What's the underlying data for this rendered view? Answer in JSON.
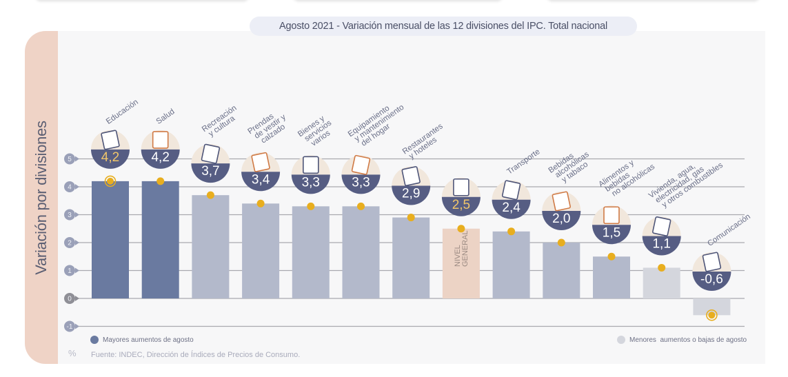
{
  "title": "Agosto 2021 - Variación mensual de las 12 divisiones del IPC. Total nacional",
  "y_axis_title": "Variación por divisiones",
  "unit_symbol": "%",
  "source": "Fuente: INDEC, Dirección de Índices de Precios de Consumo.",
  "legend": [
    {
      "label": "Mayores aumentos de agosto",
      "color": "#6a7aa0"
    },
    {
      "label": "Menores  aumentos o bajas de agosto",
      "color": "#d4d6dd"
    }
  ],
  "colors": {
    "high": "#6a7aa0",
    "mid": "#b3b9cb",
    "low": "#d4d6dd",
    "general": "#ecd3c5",
    "badge": "#565d83",
    "badge_top": "#f1e7dc",
    "dot": "#e8ae1f",
    "grid": "#a9a9ae",
    "label": "#6a6f88",
    "highlight_value": "#f1c66a"
  },
  "chart_data": {
    "type": "bar",
    "title": "Agosto 2021 - Variación mensual de las 12 divisiones del IPC. Total nacional",
    "xlabel": "",
    "ylabel": "Variación por divisiones",
    "ylim": [
      -1,
      5
    ],
    "yticks": [
      5,
      4,
      3,
      2,
      1,
      0,
      -1
    ],
    "grid": true,
    "categories": [
      "Educación",
      "Salud",
      "Recreación y cultura",
      "Prendas de vestir y calzado",
      "Bienes y servicios varios",
      "Equipamiento y mantenimiento del hogar",
      "Restaurantes y hoteles",
      "NIVEL GENERAL",
      "Transporte",
      "Bebidas alcohólicas y tabaco",
      "Alimentos y bebidas no alcohólicas",
      "Vivienda, agua, electricidad, gas y otros combustibles",
      "Comunicación"
    ],
    "values": [
      4.2,
      4.2,
      3.7,
      3.4,
      3.3,
      3.3,
      2.9,
      2.5,
      2.4,
      2.0,
      1.5,
      1.1,
      -0.6
    ],
    "value_labels": [
      "4,2",
      "4,2",
      "3,7",
      "3,4",
      "3,3",
      "3,3",
      "2,9",
      "2,5",
      "2,4",
      "2,0",
      "1,5",
      "1,1",
      "-0,6"
    ],
    "category_labels": [
      [
        "Educación"
      ],
      [
        "Salud"
      ],
      [
        "Recreación",
        "y cultura"
      ],
      [
        "Prendas",
        "de vestir y",
        "calzado"
      ],
      [
        "Bienes y",
        "servicios",
        "varios"
      ],
      [
        "Equipamiento",
        "y mantenimiento",
        "del hogar"
      ],
      [
        "Restaurantes",
        "y hoteles"
      ],
      [],
      [
        "Transporte"
      ],
      [
        "Bebidas",
        "alcohólicas",
        "y tabaco"
      ],
      [
        "Alimentos y",
        "bebidas",
        "no alcohólicas"
      ],
      [
        "Vivienda, agua,",
        "electricidad, gas",
        "y otros combustibles"
      ],
      [
        "Comunicación"
      ]
    ],
    "bar_groups": [
      "high",
      "high",
      "mid",
      "mid",
      "mid",
      "mid",
      "mid",
      "general",
      "mid",
      "mid",
      "mid",
      "low",
      "low"
    ],
    "general_bar_text": [
      "NIVEL",
      "GENERAL"
    ],
    "icons": [
      "notebook-icon",
      "health-cross-icon",
      "beach-umbrella-icon",
      "shirt-shoe-icon",
      "comb-scissors-icon",
      "washing-machine-icon",
      "plate-cutlery-icon",
      "shopping-bag-icon",
      "sube-car-icon",
      "wine-bottle-icon",
      "chicken-food-icon",
      "key-bulb-icon",
      "smartphone-icon"
    ],
    "highlighted": [
      "Educación",
      "Comunicación"
    ],
    "legend_position": "bottom"
  }
}
